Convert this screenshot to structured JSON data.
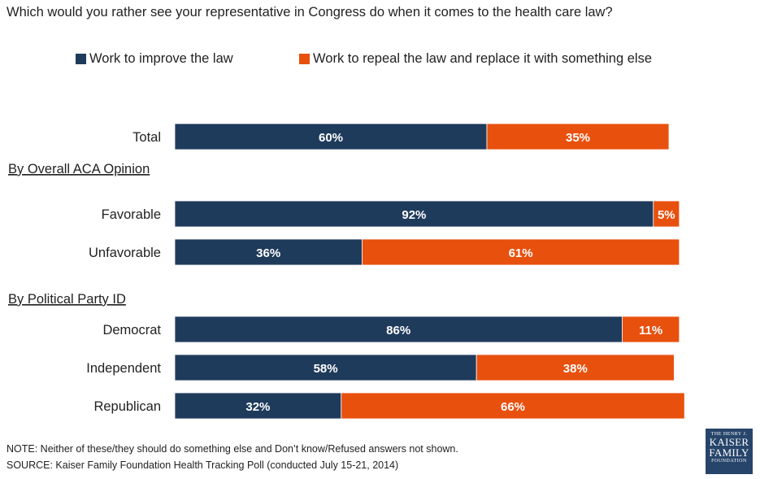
{
  "chart_data": {
    "type": "bar",
    "orientation": "horizontal",
    "stacked": true,
    "title": "Which would you rather see your representative in Congress do when it comes to the health care law?",
    "legend": [
      {
        "name": "Work to improve the law",
        "color": "#1f3b5c"
      },
      {
        "name": "Work to repeal the law and replace it with something else",
        "color": "#e8500e"
      }
    ],
    "groups": [
      {
        "header": "",
        "rows": [
          {
            "label": "Total",
            "values": [
              60,
              35
            ]
          }
        ]
      },
      {
        "header": "By Overall ACA Opinion",
        "rows": [
          {
            "label": "Favorable",
            "values": [
              92,
              5
            ]
          },
          {
            "label": "Unfavorable",
            "values": [
              36,
              61
            ]
          }
        ]
      },
      {
        "header": "By Political Party ID",
        "rows": [
          {
            "label": "Democrat",
            "values": [
              86,
              11
            ]
          },
          {
            "label": "Independent",
            "values": [
              58,
              38
            ]
          },
          {
            "label": "Republican",
            "values": [
              32,
              66
            ]
          }
        ]
      }
    ],
    "value_suffix": "%",
    "xlim": [
      0,
      100
    ]
  },
  "note": "NOTE: Neither of these/they should do something else and Don’t know/Refused answers not shown.",
  "source": "SOURCE: Kaiser Family Foundation Health Tracking Poll (conducted July 15-21, 2014)",
  "logo": {
    "line1": "THE HENRY J.",
    "line2": "KAISER",
    "line3": "FAMILY",
    "line4": "FOUNDATION"
  }
}
